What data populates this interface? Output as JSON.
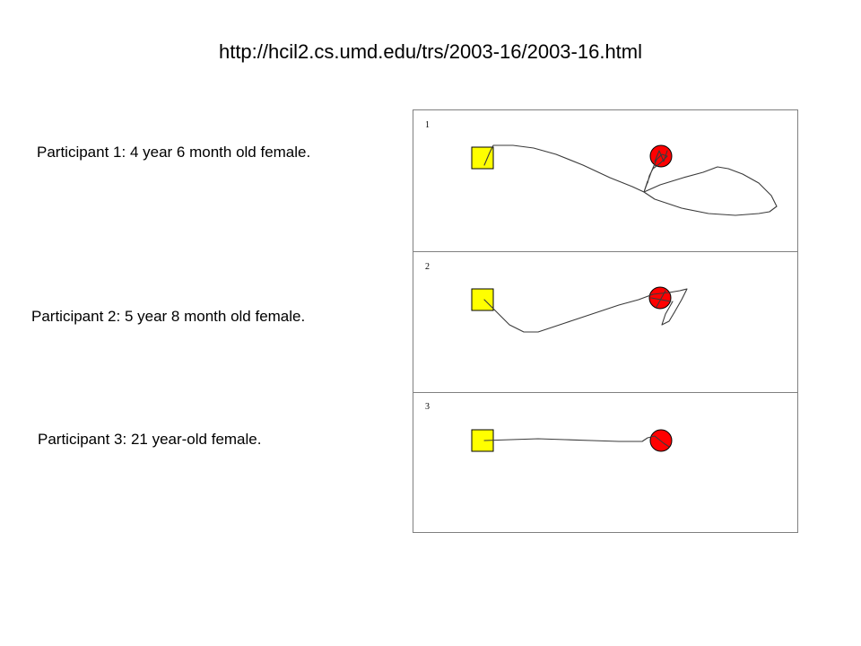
{
  "header": {
    "url": "http://hcil2.cs.umd.edu/trs/2003-16/2003-16.html"
  },
  "participants": [
    {
      "caption": "Participant 1: 4 year 6 month old female.",
      "panel_number": "1"
    },
    {
      "caption": "Participant 2: 5 year 8 month old female.",
      "panel_number": "2"
    },
    {
      "caption": "Participant 3: 21 year-old female.",
      "panel_number": "3"
    }
  ],
  "colors": {
    "start_square": "#ffff00",
    "target_circle": "#ff0000",
    "path_stroke": "#3a3a3a",
    "panel_border": "#808080"
  },
  "icons": {
    "start": "yellow-square-start-icon",
    "target": "red-circle-target-icon"
  }
}
